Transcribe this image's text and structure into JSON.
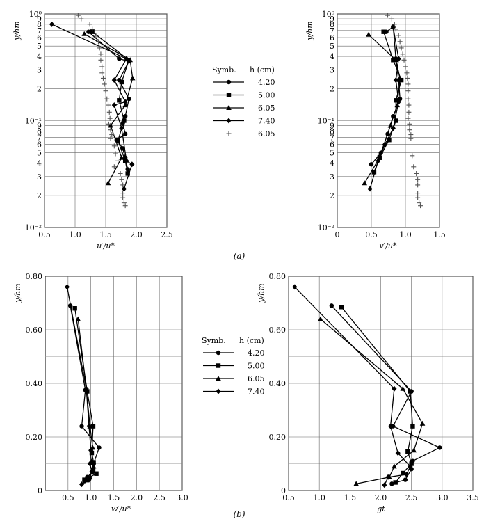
{
  "panel_labels": [
    "(a)",
    "(b)"
  ],
  "legend_a": {
    "header_symb": "Symb.",
    "header_h": "h (cm)",
    "entries": [
      {
        "value": "4.20",
        "marker": "circle"
      },
      {
        "value": "5.00",
        "marker": "square"
      },
      {
        "value": "6.05",
        "marker": "triangle"
      },
      {
        "value": "7.40",
        "marker": "diamond"
      },
      {
        "value": "6.05",
        "marker": "plus"
      }
    ]
  },
  "legend_b": {
    "header_symb": "Symb.",
    "header_h": "h (cm)",
    "entries": [
      {
        "value": "4.20",
        "marker": "circle"
      },
      {
        "value": "5.00",
        "marker": "square"
      },
      {
        "value": "6.05",
        "marker": "triangle"
      },
      {
        "value": "7.40",
        "marker": "diamond"
      }
    ]
  },
  "chart_data": [
    {
      "type": "line",
      "xlabel": "u′/u*",
      "ylabel": "y/hm",
      "xlim": [
        0.5,
        2.5
      ],
      "xticks": [
        "0.5",
        "1.0",
        "1.5",
        "2.0",
        "2.5"
      ],
      "ylim": [
        0.01,
        1
      ],
      "yscale": "log",
      "yticks": [
        "10⁻²",
        "2",
        "3",
        "4",
        "5",
        "6",
        "7",
        "8",
        "9",
        "10⁻¹",
        "2",
        "3",
        "4",
        "5",
        "6",
        "7",
        "8",
        "9",
        "10⁰"
      ],
      "grid": true,
      "series": [
        {
          "h": "4.20",
          "marker": "circle",
          "line": true,
          "points": [
            [
              1.22,
              0.68
            ],
            [
              1.72,
              0.38
            ],
            [
              1.88,
              0.36
            ],
            [
              1.72,
              0.24
            ],
            [
              1.88,
              0.16
            ],
            [
              1.82,
              0.11
            ],
            [
              1.78,
              0.095
            ],
            [
              1.82,
              0.075
            ],
            [
              1.68,
              0.066
            ],
            [
              1.78,
              0.055
            ],
            [
              1.82,
              0.045
            ],
            [
              1.86,
              0.035
            ]
          ]
        },
        {
          "h": "5.00",
          "marker": "square",
          "line": true,
          "points": [
            [
              1.28,
              0.68
            ],
            [
              1.88,
              0.37
            ],
            [
              1.76,
              0.23
            ],
            [
              1.72,
              0.155
            ],
            [
              1.8,
              0.1
            ],
            [
              1.7,
              0.065
            ],
            [
              1.82,
              0.042
            ],
            [
              1.86,
              0.032
            ]
          ]
        },
        {
          "h": "6.05",
          "marker": "triangle",
          "line": true,
          "points": [
            [
              1.15,
              0.65
            ],
            [
              1.9,
              0.37
            ],
            [
              1.94,
              0.25
            ],
            [
              1.82,
              0.14
            ],
            [
              1.58,
              0.09
            ],
            [
              1.76,
              0.045
            ],
            [
              1.54,
              0.026
            ]
          ]
        },
        {
          "h": "7.40",
          "marker": "diamond",
          "line": true,
          "points": [
            [
              0.62,
              0.8
            ],
            [
              1.84,
              0.38
            ],
            [
              1.64,
              0.24
            ],
            [
              1.82,
              0.15
            ],
            [
              1.64,
              0.14
            ],
            [
              1.76,
              0.085
            ],
            [
              1.84,
              0.042
            ],
            [
              1.93,
              0.039
            ],
            [
              1.8,
              0.023
            ]
          ]
        },
        {
          "h": "6.05",
          "marker": "plus",
          "line": false,
          "points": [
            [
              1.05,
              0.97
            ],
            [
              1.1,
              0.9
            ],
            [
              1.24,
              0.8
            ],
            [
              1.28,
              0.72
            ],
            [
              1.34,
              0.63
            ],
            [
              1.38,
              0.55
            ],
            [
              1.4,
              0.48
            ],
            [
              1.42,
              0.42
            ],
            [
              1.42,
              0.37
            ],
            [
              1.44,
              0.32
            ],
            [
              1.44,
              0.28
            ],
            [
              1.46,
              0.25
            ],
            [
              1.48,
              0.22
            ],
            [
              1.5,
              0.19
            ],
            [
              1.52,
              0.16
            ],
            [
              1.54,
              0.14
            ],
            [
              1.56,
              0.12
            ],
            [
              1.57,
              0.105
            ],
            [
              1.55,
              0.093
            ],
            [
              1.58,
              0.082
            ],
            [
              1.6,
              0.074
            ],
            [
              1.58,
              0.068
            ],
            [
              1.64,
              0.058
            ],
            [
              1.66,
              0.049
            ],
            [
              1.7,
              0.042
            ],
            [
              1.64,
              0.037
            ],
            [
              1.74,
              0.032
            ],
            [
              1.76,
              0.028
            ],
            [
              1.78,
              0.025
            ],
            [
              1.78,
              0.021
            ],
            [
              1.78,
              0.019
            ],
            [
              1.8,
              0.017
            ],
            [
              1.82,
              0.016
            ]
          ]
        }
      ]
    },
    {
      "type": "line",
      "xlabel": "v′/u*",
      "ylabel": "y/hm",
      "xlim": [
        0,
        1.5
      ],
      "xticks": [
        "0",
        "0.5",
        "1.0",
        "1.5"
      ],
      "ylim": [
        0.01,
        1
      ],
      "yscale": "log",
      "yticks": [
        "10⁻²",
        "2",
        "3",
        "4",
        "5",
        "6",
        "7",
        "8",
        "9",
        "10⁻¹",
        "2",
        "3",
        "4",
        "5",
        "6",
        "7",
        "8",
        "9",
        "10⁰"
      ],
      "grid": true,
      "series": [
        {
          "h": "4.20",
          "marker": "circle",
          "line": true,
          "points": [
            [
              0.72,
              0.68
            ],
            [
              0.82,
              0.76
            ],
            [
              0.86,
              0.38
            ],
            [
              0.9,
              0.24
            ],
            [
              0.92,
              0.16
            ],
            [
              0.82,
              0.11
            ],
            [
              0.74,
              0.075
            ],
            [
              0.64,
              0.05
            ],
            [
              0.5,
              0.039
            ]
          ]
        },
        {
          "h": "5.00",
          "marker": "square",
          "line": true,
          "points": [
            [
              0.68,
              0.68
            ],
            [
              0.82,
              0.37
            ],
            [
              0.94,
              0.24
            ],
            [
              0.86,
              0.155
            ],
            [
              0.86,
              0.1
            ],
            [
              0.76,
              0.066
            ],
            [
              0.62,
              0.045
            ],
            [
              0.54,
              0.033
            ]
          ]
        },
        {
          "h": "6.05",
          "marker": "triangle",
          "line": true,
          "points": [
            [
              0.46,
              0.64
            ],
            [
              0.86,
              0.37
            ],
            [
              0.92,
              0.25
            ],
            [
              0.88,
              0.14
            ],
            [
              0.78,
              0.09
            ],
            [
              0.62,
              0.045
            ],
            [
              0.4,
              0.026
            ]
          ]
        },
        {
          "h": "7.40",
          "marker": "diamond",
          "line": true,
          "points": [
            [
              0.82,
              0.75
            ],
            [
              0.9,
              0.38
            ],
            [
              0.86,
              0.24
            ],
            [
              0.9,
              0.15
            ],
            [
              0.82,
              0.085
            ],
            [
              0.7,
              0.06
            ],
            [
              0.6,
              0.042
            ],
            [
              0.48,
              0.023
            ]
          ]
        },
        {
          "h": "6.05",
          "marker": "plus",
          "line": false,
          "points": [
            [
              0.74,
              0.97
            ],
            [
              0.8,
              0.9
            ],
            [
              0.84,
              0.8
            ],
            [
              0.86,
              0.72
            ],
            [
              0.9,
              0.63
            ],
            [
              0.92,
              0.55
            ],
            [
              0.94,
              0.48
            ],
            [
              0.96,
              0.42
            ],
            [
              0.98,
              0.37
            ],
            [
              1.0,
              0.32
            ],
            [
              1.02,
              0.28
            ],
            [
              1.03,
              0.25
            ],
            [
              1.04,
              0.22
            ],
            [
              1.04,
              0.19
            ],
            [
              1.04,
              0.16
            ],
            [
              1.05,
              0.14
            ],
            [
              1.05,
              0.12
            ],
            [
              1.04,
              0.105
            ],
            [
              1.06,
              0.093
            ],
            [
              1.06,
              0.082
            ],
            [
              1.08,
              0.074
            ],
            [
              1.08,
              0.068
            ],
            [
              1.1,
              0.047
            ],
            [
              1.12,
              0.037
            ],
            [
              1.16,
              0.032
            ],
            [
              1.18,
              0.028
            ],
            [
              1.18,
              0.025
            ],
            [
              1.18,
              0.021
            ],
            [
              1.18,
              0.019
            ],
            [
              1.2,
              0.017
            ],
            [
              1.22,
              0.016
            ]
          ]
        }
      ]
    },
    {
      "type": "line",
      "xlabel": "w′/u*",
      "ylabel": "y/hm",
      "xlim": [
        0,
        3.0
      ],
      "xticks": [
        "0.5",
        "1.0",
        "1.5",
        "2.0",
        "2.5",
        "3.0"
      ],
      "ylim": [
        0,
        0.8
      ],
      "yscale": "linear",
      "yticks": [
        "0",
        "0.20",
        "0.40",
        "0.60",
        "0.80"
      ],
      "grid": true,
      "series": [
        {
          "h": "4.20",
          "marker": "circle",
          "line": true,
          "points": [
            [
              0.55,
              0.69
            ],
            [
              0.88,
              0.375
            ],
            [
              0.8,
              0.24
            ],
            [
              1.18,
              0.16
            ],
            [
              1.06,
              0.1
            ],
            [
              1.04,
              0.07
            ],
            [
              0.92,
              0.05
            ],
            [
              0.86,
              0.035
            ]
          ]
        },
        {
          "h": "5.00",
          "marker": "square",
          "line": true,
          "points": [
            [
              0.65,
              0.68
            ],
            [
              0.92,
              0.37
            ],
            [
              1.05,
              0.24
            ],
            [
              1.02,
              0.14
            ],
            [
              1.06,
              0.105
            ],
            [
              1.05,
              0.075
            ],
            [
              1.12,
              0.063
            ],
            [
              0.86,
              0.04
            ]
          ]
        },
        {
          "h": "6.05",
          "marker": "triangle",
          "line": true,
          "points": [
            [
              0.72,
              0.64
            ],
            [
              0.9,
              0.38
            ],
            [
              0.98,
              0.24
            ],
            [
              1.04,
              0.16
            ],
            [
              1.02,
              0.11
            ],
            [
              1.06,
              0.09
            ],
            [
              0.98,
              0.05
            ],
            [
              0.9,
              0.038
            ]
          ]
        },
        {
          "h": "7.40",
          "marker": "diamond",
          "line": true,
          "points": [
            [
              0.48,
              0.76
            ],
            [
              0.9,
              0.38
            ],
            [
              0.96,
              0.24
            ],
            [
              1.0,
              0.15
            ],
            [
              0.98,
              0.1
            ],
            [
              1.02,
              0.07
            ],
            [
              0.96,
              0.04
            ],
            [
              0.8,
              0.023
            ]
          ]
        }
      ]
    },
    {
      "type": "line",
      "xlabel": "gt",
      "ylabel": "y/hm",
      "xlim": [
        0.5,
        3.5
      ],
      "xticks": [
        "0.5",
        "1.0",
        "1.5",
        "2.0",
        "2.5",
        "3.0",
        "3.5"
      ],
      "ylim": [
        0,
        0.8
      ],
      "yscale": "linear",
      "yticks": [
        "0",
        "0.20",
        "0.40",
        "0.60",
        "0.80"
      ],
      "grid": true,
      "series": [
        {
          "h": "4.20",
          "marker": "circle",
          "line": true,
          "points": [
            [
              1.2,
              0.69
            ],
            [
              2.5,
              0.37
            ],
            [
              2.2,
              0.24
            ],
            [
              2.96,
              0.16
            ],
            [
              2.52,
              0.11
            ],
            [
              2.5,
              0.08
            ],
            [
              2.4,
              0.04
            ],
            [
              2.18,
              0.025
            ]
          ]
        },
        {
          "h": "5.00",
          "marker": "square",
          "line": true,
          "points": [
            [
              1.36,
              0.685
            ],
            [
              2.48,
              0.37
            ],
            [
              2.52,
              0.24
            ],
            [
              2.44,
              0.145
            ],
            [
              2.5,
              0.1
            ],
            [
              2.36,
              0.065
            ],
            [
              2.24,
              0.03
            ]
          ]
        },
        {
          "h": "6.05",
          "marker": "triangle",
          "line": true,
          "points": [
            [
              1.02,
              0.64
            ],
            [
              2.36,
              0.38
            ],
            [
              2.68,
              0.25
            ],
            [
              2.54,
              0.15
            ],
            [
              2.22,
              0.09
            ],
            [
              2.14,
              0.05
            ],
            [
              1.6,
              0.025
            ]
          ]
        },
        {
          "h": "7.40",
          "marker": "diamond",
          "line": true,
          "points": [
            [
              0.6,
              0.76
            ],
            [
              2.22,
              0.38
            ],
            [
              2.16,
              0.24
            ],
            [
              2.28,
              0.14
            ],
            [
              2.48,
              0.09
            ],
            [
              2.42,
              0.06
            ],
            [
              2.12,
              0.05
            ],
            [
              2.06,
              0.02
            ]
          ]
        }
      ]
    }
  ]
}
